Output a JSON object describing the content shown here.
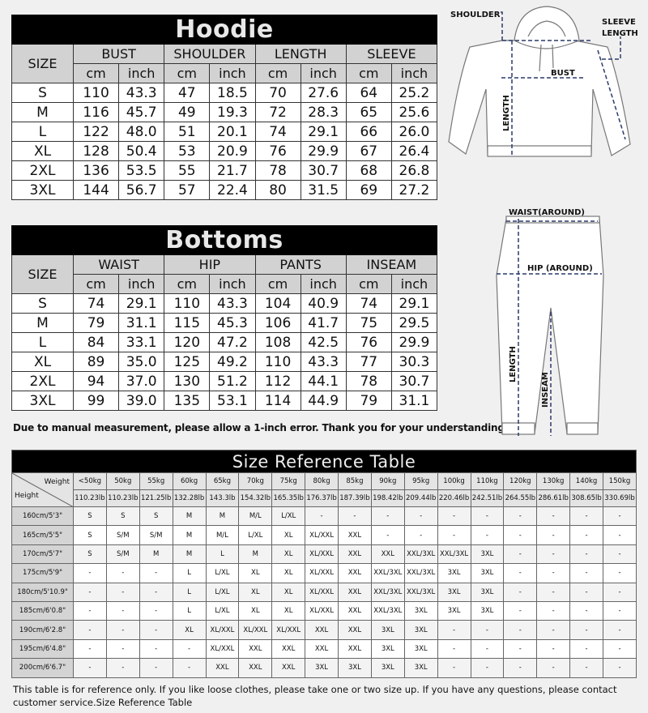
{
  "hoodie": {
    "title": "Hoodie",
    "size_label": "SIZE",
    "measures": [
      "BUST",
      "SHOULDER",
      "LENGTH",
      "SLEEVE"
    ],
    "units": [
      "cm",
      "inch"
    ],
    "rows": [
      [
        "S",
        "110",
        "43.3",
        "47",
        "18.5",
        "70",
        "27.6",
        "64",
        "25.2"
      ],
      [
        "M",
        "116",
        "45.7",
        "49",
        "19.3",
        "72",
        "28.3",
        "65",
        "25.6"
      ],
      [
        "L",
        "122",
        "48.0",
        "51",
        "20.1",
        "74",
        "29.1",
        "66",
        "26.0"
      ],
      [
        "XL",
        "128",
        "50.4",
        "53",
        "20.9",
        "76",
        "29.9",
        "67",
        "26.4"
      ],
      [
        "2XL",
        "136",
        "53.5",
        "55",
        "21.7",
        "78",
        "30.7",
        "68",
        "26.8"
      ],
      [
        "3XL",
        "144",
        "56.7",
        "57",
        "22.4",
        "80",
        "31.5",
        "69",
        "27.2"
      ]
    ]
  },
  "bottoms": {
    "title": "Bottoms",
    "size_label": "SIZE",
    "measures": [
      "WAIST",
      "HIP",
      "PANTS",
      "INSEAM"
    ],
    "units": [
      "cm",
      "inch"
    ],
    "rows": [
      [
        "S",
        "74",
        "29.1",
        "110",
        "43.3",
        "104",
        "40.9",
        "74",
        "29.1"
      ],
      [
        "M",
        "79",
        "31.1",
        "115",
        "45.3",
        "106",
        "41.7",
        "75",
        "29.5"
      ],
      [
        "L",
        "84",
        "33.1",
        "120",
        "47.2",
        "108",
        "42.5",
        "76",
        "29.9"
      ],
      [
        "XL",
        "89",
        "35.0",
        "125",
        "49.2",
        "110",
        "43.3",
        "77",
        "30.3"
      ],
      [
        "2XL",
        "94",
        "37.0",
        "130",
        "51.2",
        "112",
        "44.1",
        "78",
        "30.7"
      ],
      [
        "3XL",
        "99",
        "39.0",
        "135",
        "53.1",
        "114",
        "44.9",
        "79",
        "31.1"
      ]
    ]
  },
  "note": "Due to manual measurement, please allow a 1-inch error. Thank you for your understanding.",
  "hoodie_diagram": {
    "shoulder": "SHOULDER",
    "sleeve1": "SLEEVE",
    "sleeve2": "LENGTH",
    "bust": "BUST",
    "length": "LENGTH"
  },
  "pants_diagram": {
    "waist": "WAIST(AROUND)",
    "hip": "HIP (AROUND)",
    "length": "LENGTH",
    "inseam": "INSEAM"
  },
  "reference": {
    "title": "Size Reference Table",
    "weight_label": "Weight",
    "height_label": "Height",
    "kg": [
      "<50kg",
      "50kg",
      "55kg",
      "60kg",
      "65kg",
      "70kg",
      "75kg",
      "80kg",
      "85kg",
      "90kg",
      "95kg",
      "100kg",
      "110kg",
      "120kg",
      "130kg",
      "140kg",
      "150kg"
    ],
    "lb": [
      "110.23lb",
      "110.23lb",
      "121.25lb",
      "132.28lb",
      "143.3lb",
      "154.32lb",
      "165.35lb",
      "176.37lb",
      "187.39lb",
      "198.42lb",
      "209.44lb",
      "220.46lb",
      "242.51lb",
      "264.55lb",
      "286.61lb",
      "308.65lb",
      "330.69lb"
    ],
    "rows": [
      [
        "160cm/5'3\"",
        "S",
        "S",
        "S",
        "M",
        "M",
        "M/L",
        "L/XL",
        "-",
        "-",
        "-",
        "-",
        "-",
        "-",
        "-",
        "-",
        "-",
        "-"
      ],
      [
        "165cm/5'5\"",
        "S",
        "S/M",
        "S/M",
        "M",
        "M/L",
        "L/XL",
        "XL",
        "XL/XXL",
        "XXL",
        "-",
        "-",
        "-",
        "-",
        "-",
        "-",
        "-",
        "-"
      ],
      [
        "170cm/5'7\"",
        "S",
        "S/M",
        "M",
        "M",
        "L",
        "M",
        "XL",
        "XL/XXL",
        "XXL",
        "XXL",
        "XXL/3XL",
        "XXL/3XL",
        "3XL",
        "-",
        "-",
        "-",
        "-"
      ],
      [
        "175cm/5'9\"",
        "-",
        "-",
        "-",
        "L",
        "L/XL",
        "XL",
        "XL",
        "XL/XXL",
        "XXL",
        "XXL/3XL",
        "XXL/3XL",
        "3XL",
        "3XL",
        "-",
        "-",
        "-",
        "-"
      ],
      [
        "180cm/5'10.9\"",
        "-",
        "-",
        "-",
        "L",
        "L/XL",
        "XL",
        "XL",
        "XL/XXL",
        "XXL",
        "XXL/3XL",
        "XXL/3XL",
        "3XL",
        "3XL",
        "-",
        "-",
        "-",
        "-"
      ],
      [
        "185cm/6'0.8\"",
        "-",
        "-",
        "-",
        "L",
        "L/XL",
        "XL",
        "XL",
        "XL/XXL",
        "XXL",
        "XXL/3XL",
        "3XL",
        "3XL",
        "3XL",
        "-",
        "-",
        "-",
        "-"
      ],
      [
        "190cm/6'2.8\"",
        "-",
        "-",
        "-",
        "XL",
        "XL/XXL",
        "XL/XXL",
        "XL/XXL",
        "XXL",
        "XXL",
        "3XL",
        "3XL",
        "-",
        "-",
        "-",
        "-",
        "-",
        "-"
      ],
      [
        "195cm/6'4.8\"",
        "-",
        "-",
        "-",
        "-",
        "XL/XXL",
        "XXL",
        "XXL",
        "XXL",
        "XXL",
        "3XL",
        "3XL",
        "-",
        "-",
        "-",
        "-",
        "-",
        "-"
      ],
      [
        "200cm/6'6.7\"",
        "-",
        "-",
        "-",
        "-",
        "XXL",
        "XXL",
        "XXL",
        "3XL",
        "3XL",
        "3XL",
        "3XL",
        "-",
        "-",
        "-",
        "-",
        "-",
        "-"
      ]
    ]
  },
  "footer": "This table is for reference only. If you like loose clothes, please take one or two size up. If you have any questions, please contact customer service.Size Reference Table"
}
